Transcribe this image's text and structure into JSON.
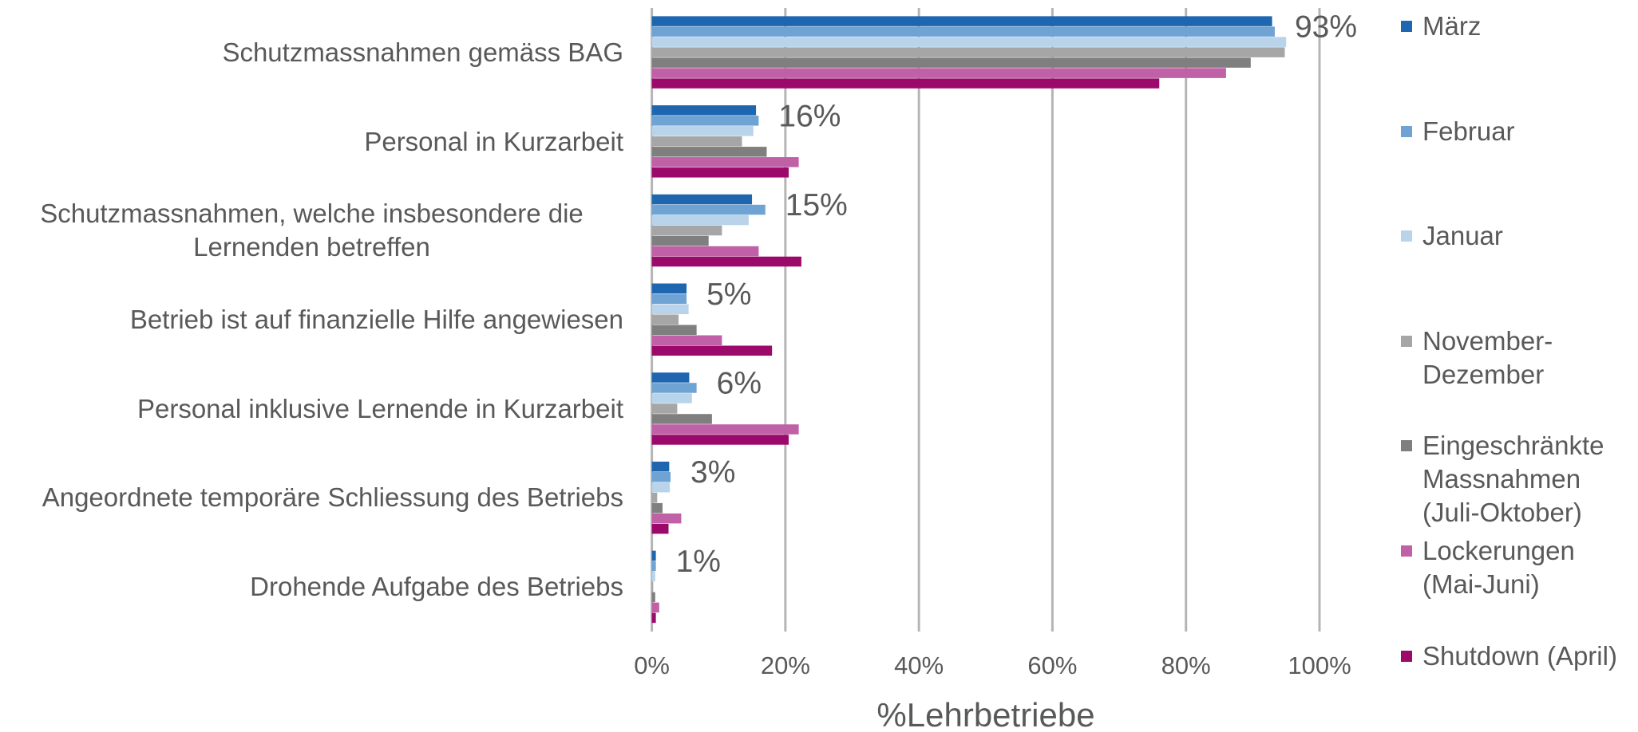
{
  "chart_data": {
    "type": "barh",
    "xlabel": "%Lehrbetriebe",
    "categories": [
      "Schutzmassnahmen gemäss BAG",
      "Personal in Kurzarbeit",
      "Schutzmassnahmen, welche insbesondere die Lernenden betreffen",
      "Betrieb ist auf finanzielle Hilfe angewiesen",
      "Personal inklusive Lernende in Kurzarbeit",
      "Angeordnete temporäre Schliessung des Betriebs",
      "Drohende Aufgabe des Betriebs"
    ],
    "series": [
      {
        "name": "März",
        "color": "#1f66b0",
        "values": [
          92.9,
          15.6,
          15,
          5.2,
          5.6,
          2.6,
          0.6
        ],
        "value_labels": [
          "93%",
          "16%",
          "15%",
          "5%",
          "6%",
          "3%",
          "1%"
        ]
      },
      {
        "name": "Februar",
        "color": "#6fa3d4",
        "values": [
          93.3,
          16,
          17,
          5.2,
          6.7,
          2.8,
          0.6
        ]
      },
      {
        "name": "Januar",
        "color": "#b8d3ea",
        "values": [
          95,
          15.2,
          14.5,
          5.5,
          6,
          2.7,
          0.5
        ]
      },
      {
        "name": "November-Dezember",
        "color": "#a6a6a6",
        "values": [
          94.8,
          13.5,
          10.5,
          4,
          3.8,
          0.8,
          0.2
        ]
      },
      {
        "name": "Eingeschränkte Massnahmen (Juli-Oktober)",
        "color": "#7f7f7f",
        "values": [
          89.7,
          17.2,
          8.5,
          6.7,
          9,
          1.6,
          0.5
        ]
      },
      {
        "name": "Lockerungen (Mai-Juni)",
        "color": "#c060a6",
        "values": [
          86,
          22,
          16,
          10.5,
          22,
          4.4,
          1.1
        ]
      },
      {
        "name": "Shutdown (April)",
        "color": "#9b0a6b",
        "values": [
          76,
          20.5,
          22.4,
          18,
          20.5,
          2.5,
          0.6
        ]
      }
    ],
    "xlim": [
      0,
      100
    ],
    "xticks": [
      {
        "value": 0,
        "label": "0%"
      },
      {
        "value": 20,
        "label": "20%"
      },
      {
        "value": 40,
        "label": "40%"
      },
      {
        "value": 60,
        "label": "60%"
      },
      {
        "value": 80,
        "label": "80%"
      },
      {
        "value": 100,
        "label": "100%"
      }
    ],
    "grid": true
  }
}
